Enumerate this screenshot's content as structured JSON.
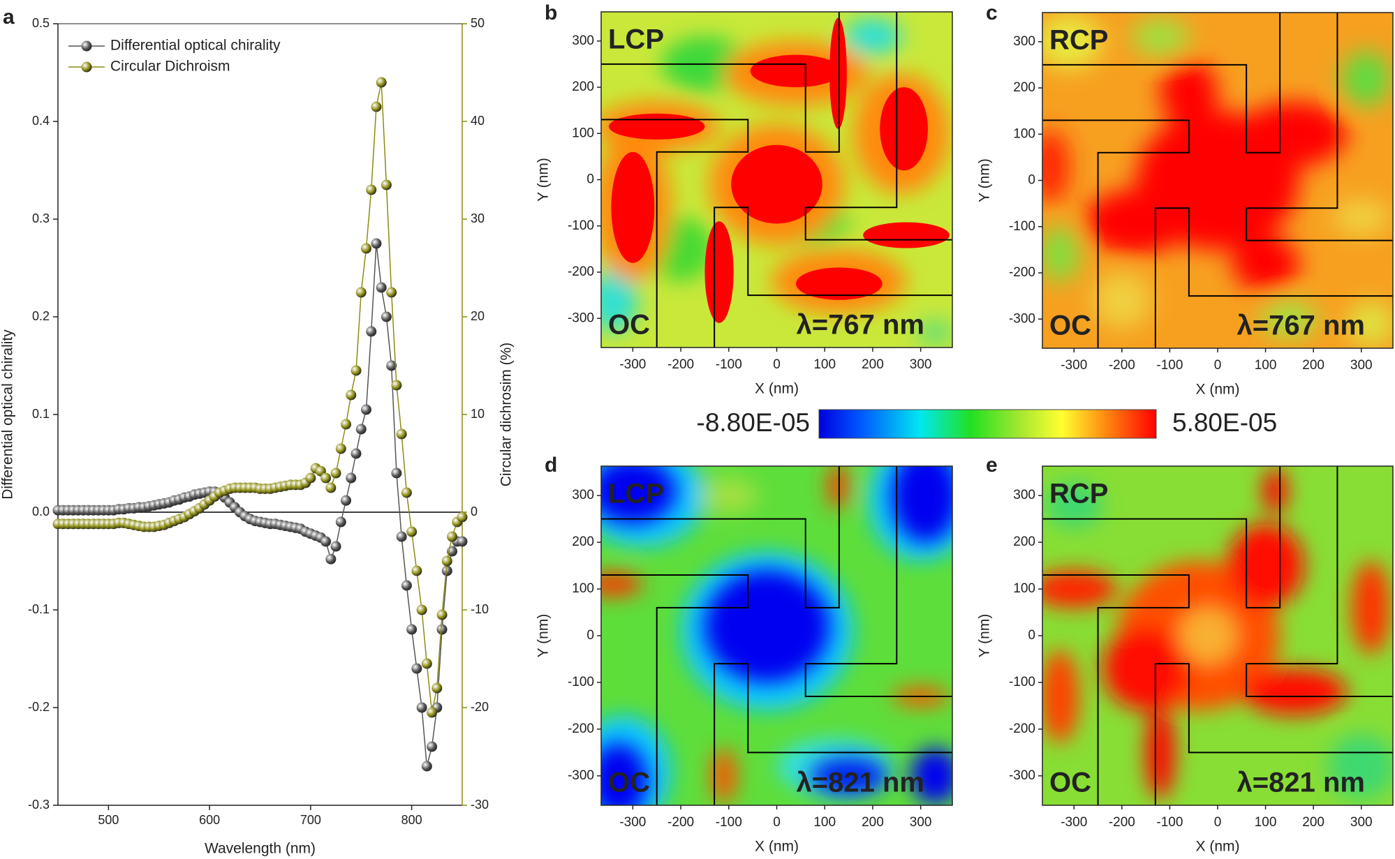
{
  "chart_data": [
    {
      "type": "line",
      "panel": "a",
      "xlabel": "Wavelength (nm)",
      "ylabel": "Differential optical chirality",
      "y2label": "Circular dichrosim (%)",
      "legend": "upper left",
      "x": [
        450,
        455,
        460,
        465,
        470,
        475,
        480,
        485,
        490,
        495,
        500,
        505,
        510,
        515,
        520,
        525,
        530,
        535,
        540,
        545,
        550,
        555,
        560,
        565,
        570,
        575,
        580,
        585,
        590,
        595,
        600,
        605,
        610,
        615,
        620,
        625,
        630,
        635,
        640,
        645,
        650,
        655,
        660,
        665,
        670,
        675,
        680,
        685,
        690,
        695,
        700,
        705,
        710,
        715,
        720,
        725,
        730,
        735,
        740,
        745,
        750,
        755,
        760,
        765,
        770,
        775,
        780,
        785,
        790,
        795,
        800,
        805,
        810,
        815,
        820,
        825,
        830,
        835,
        840,
        845,
        850
      ],
      "series": [
        {
          "name": "Differential optical chirality",
          "color": "#555555",
          "values": [
            0.002,
            0.002,
            0.002,
            0.002,
            0.002,
            0.002,
            0.002,
            0.002,
            0.002,
            0.002,
            0.002,
            0.002,
            0.003,
            0.003,
            0.004,
            0.004,
            0.005,
            0.005,
            0.006,
            0.007,
            0.008,
            0.009,
            0.01,
            0.012,
            0.013,
            0.015,
            0.016,
            0.018,
            0.019,
            0.02,
            0.021,
            0.021,
            0.019,
            0.015,
            0.01,
            0.005,
            0,
            -0.004,
            -0.007,
            -0.009,
            -0.01,
            -0.011,
            -0.012,
            -0.012,
            -0.013,
            -0.014,
            -0.015,
            -0.016,
            -0.017,
            -0.02,
            -0.022,
            -0.024,
            -0.026,
            -0.03,
            -0.048,
            -0.035,
            -0.01,
            0.012,
            0.035,
            0.06,
            0.085,
            0.105,
            0.185,
            0.275,
            0.23,
            0.2,
            0.15,
            0.04,
            -0.025,
            -0.075,
            -0.12,
            -0.16,
            -0.2,
            -0.26,
            -0.24,
            -0.2,
            -0.12,
            -0.06,
            -0.04,
            -0.03,
            -0.03
          ]
        },
        {
          "name": "Circular Dichroism",
          "color": "#8c8c12",
          "axis": "y2",
          "values": [
            -1.2,
            -1.2,
            -1.2,
            -1.2,
            -1.2,
            -1.2,
            -1.2,
            -1.2,
            -1.2,
            -1.2,
            -1.2,
            -1.2,
            -1.1,
            -1.1,
            -1.2,
            -1.3,
            -1.4,
            -1.5,
            -1.5,
            -1.5,
            -1.4,
            -1.3,
            -1.1,
            -0.9,
            -0.7,
            -0.5,
            -0.2,
            0.1,
            0.4,
            0.8,
            1.2,
            1.6,
            2.0,
            2.2,
            2.4,
            2.5,
            2.5,
            2.5,
            2.5,
            2.5,
            2.4,
            2.4,
            2.4,
            2.5,
            2.6,
            2.7,
            2.8,
            2.8,
            2.8,
            3.0,
            3.5,
            4.5,
            4.2,
            3.5,
            2.5,
            4.0,
            6.5,
            9.0,
            12,
            14.5,
            22.5,
            27,
            33,
            41.5,
            44,
            33.5,
            22.5,
            13,
            8,
            2,
            -2,
            -6,
            -10,
            -15.5,
            -20.5,
            -18,
            -10.5,
            -5,
            -2.5,
            -1,
            -0.5
          ]
        }
      ],
      "xlim": [
        450,
        850
      ],
      "xticks": [
        500,
        600,
        700,
        800
      ],
      "ylim": [
        -0.3,
        0.5
      ],
      "yticks": [
        -0.3,
        -0.2,
        -0.1,
        {
          "value": 0,
          "label": "0.0"
        },
        0.1,
        0.2,
        0.3,
        0.4,
        0.5
      ],
      "y2lim": [
        -30,
        50
      ],
      "y2ticks": [
        -30,
        -20,
        -10,
        0,
        10,
        20,
        30,
        40,
        50
      ]
    },
    {
      "type": "heatmap",
      "panel": "b",
      "polarization": "LCP",
      "structure": "OC",
      "wavelength": "λ=767 nm",
      "xlabel": "X (nm)",
      "ylabel": "Y (nm)",
      "xlim": [
        -366,
        366
      ],
      "ylim": [
        -363,
        363
      ],
      "xticks": [
        -300,
        -200,
        -100,
        0,
        100,
        200,
        300
      ],
      "yticks": [
        -300,
        -200,
        -100,
        0,
        100,
        200,
        300
      ]
    },
    {
      "type": "heatmap",
      "panel": "c",
      "polarization": "RCP",
      "structure": "OC",
      "wavelength": "λ=767 nm",
      "xlabel": "X (nm)",
      "ylabel": "Y (nm)",
      "xlim": [
        -366,
        366
      ],
      "ylim": [
        -363,
        363
      ],
      "xticks": [
        -300,
        -200,
        -100,
        0,
        100,
        200,
        300
      ],
      "yticks": [
        -300,
        -200,
        -100,
        0,
        100,
        200,
        300
      ]
    },
    {
      "type": "heatmap",
      "panel": "d",
      "polarization": "LCP",
      "structure": "OC",
      "wavelength": "λ=821 nm",
      "xlabel": "X (nm)",
      "ylabel": "Y (nm)",
      "xlim": [
        -366,
        366
      ],
      "ylim": [
        -363,
        363
      ],
      "xticks": [
        -300,
        -200,
        -100,
        0,
        100,
        200,
        300
      ],
      "yticks": [
        -300,
        -200,
        -100,
        0,
        100,
        200,
        300
      ]
    },
    {
      "type": "heatmap",
      "panel": "e",
      "polarization": "RCP",
      "structure": "OC",
      "wavelength": "λ=821 nm",
      "xlabel": "X (nm)",
      "ylabel": "Y (nm)",
      "xlim": [
        -366,
        366
      ],
      "ylim": [
        -363,
        363
      ],
      "xticks": [
        -300,
        -200,
        -100,
        0,
        100,
        200,
        300
      ],
      "yticks": [
        -300,
        -200,
        -100,
        0,
        100,
        200,
        300
      ]
    }
  ],
  "colorbar": {
    "ticks": [
      {
        "value": -8.8e-05,
        "label": "-8.80E-05"
      },
      {
        "value": 5.8e-05,
        "label": "5.80E-05"
      }
    ]
  }
}
